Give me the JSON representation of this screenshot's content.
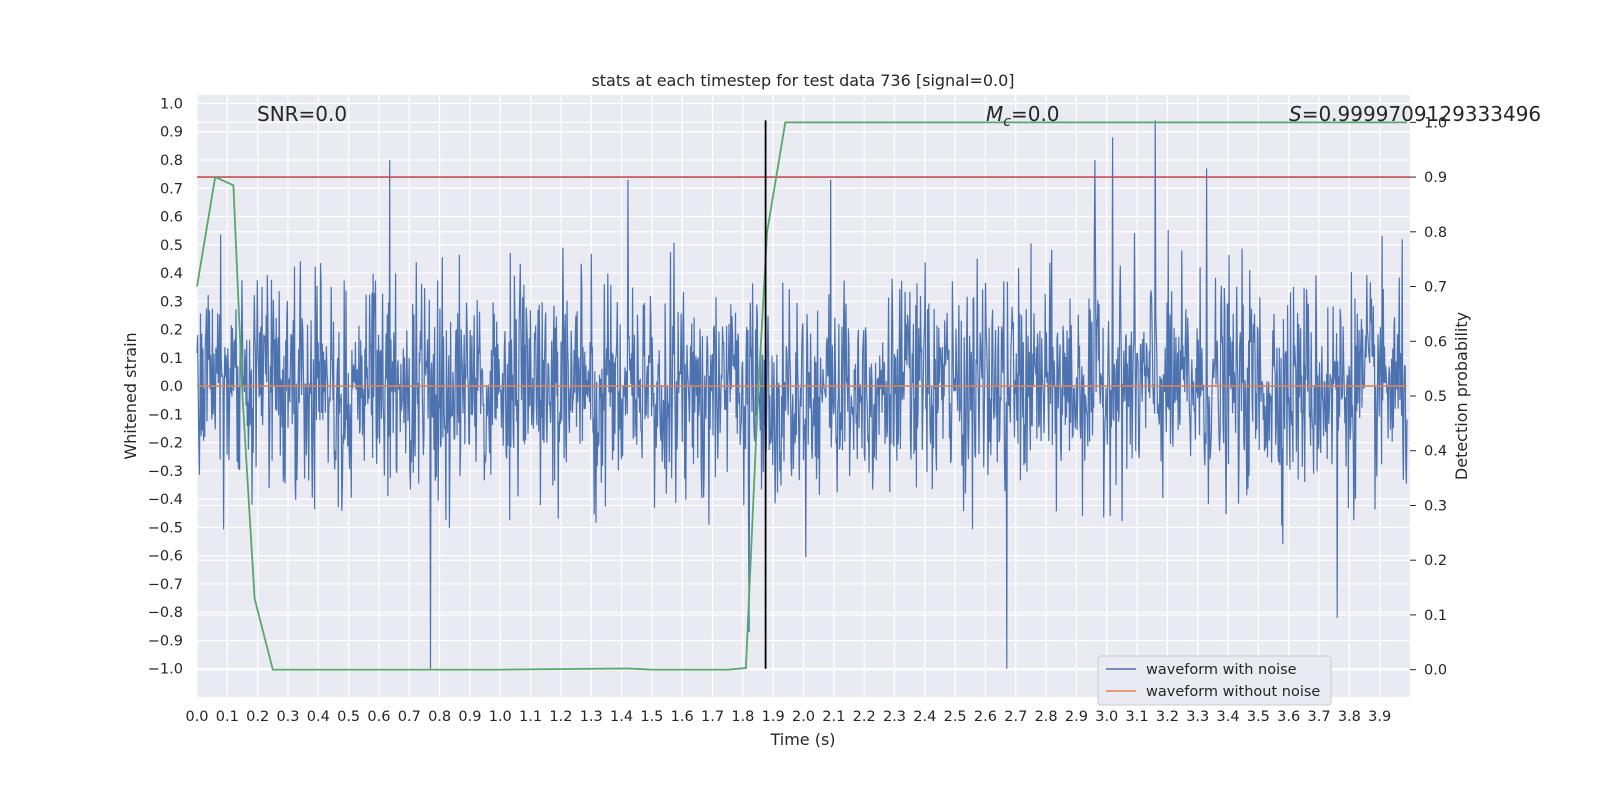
{
  "chart_data": {
    "type": "line",
    "title": "stats at each timestep for test data 736 [signal=0.0]",
    "xlabel": "Time (s)",
    "ylabel": "Whitened strain",
    "y2label": "Detection probability",
    "xlim": [
      0.0,
      4.0
    ],
    "ylim": [
      -1.1,
      1.03
    ],
    "y2lim": [
      -0.05,
      1.05
    ],
    "xticks": [
      "0.0",
      "0.1",
      "0.2",
      "0.3",
      "0.4",
      "0.5",
      "0.6",
      "0.7",
      "0.8",
      "0.9",
      "1.0",
      "1.1",
      "1.2",
      "1.3",
      "1.4",
      "1.5",
      "1.6",
      "1.7",
      "1.8",
      "1.9",
      "2.0",
      "2.1",
      "2.2",
      "2.3",
      "2.4",
      "2.5",
      "2.6",
      "2.7",
      "2.8",
      "2.9",
      "3.0",
      "3.1",
      "3.2",
      "3.3",
      "3.4",
      "3.5",
      "3.6",
      "3.7",
      "3.8",
      "3.9"
    ],
    "yticks": [
      "1.0",
      "0.9",
      "0.8",
      "0.7",
      "0.6",
      "0.5",
      "0.4",
      "0.3",
      "0.2",
      "0.1",
      "0.0",
      "−0.1",
      "−0.2",
      "−0.3",
      "−0.4",
      "−0.5",
      "−0.6",
      "−0.7",
      "−0.8",
      "−0.9",
      "−1.0"
    ],
    "y2ticks": [
      "1.0",
      "0.9",
      "0.8",
      "0.7",
      "0.6",
      "0.5",
      "0.4",
      "0.3",
      "0.2",
      "0.1",
      "0.0"
    ],
    "annotations": {
      "snr": "SNR=0.0",
      "mc_symbol": "M",
      "mc_sub": "c",
      "mc_value": "=0.0",
      "s_symbol": "S",
      "s_value": "=0.9999709129333496"
    },
    "threshold": {
      "axis": "right",
      "value": 0.9,
      "color": "#c44e52"
    },
    "marker_line": {
      "x": 1.875,
      "ymin": -1.0,
      "ymax": 0.94,
      "color": "#000000"
    },
    "legend": {
      "placement": "bottom-right"
    },
    "series": [
      {
        "name": "waveform with noise",
        "axis": "left",
        "color": "#4c72b0",
        "kind": "noise",
        "samples": 2048,
        "typical_amplitude": 0.3,
        "notable_peaks": [
          {
            "x": 0.635,
            "y": 0.8
          },
          {
            "x": 0.77,
            "y": -1.0
          },
          {
            "x": 1.42,
            "y": 0.73
          },
          {
            "x": 1.82,
            "y": -0.87
          },
          {
            "x": 2.09,
            "y": 0.73
          },
          {
            "x": 2.67,
            "y": -1.0
          },
          {
            "x": 2.96,
            "y": 0.8
          },
          {
            "x": 3.02,
            "y": 0.88
          },
          {
            "x": 3.16,
            "y": 0.94
          },
          {
            "x": 3.33,
            "y": 0.77
          },
          {
            "x": 3.76,
            "y": -0.82
          }
        ]
      },
      {
        "name": "waveform without noise",
        "axis": "left",
        "color": "#dd8452",
        "x": [
          0.0,
          3.99
        ],
        "y": [
          0.0,
          0.0
        ]
      },
      {
        "name": "detection probability",
        "axis": "right",
        "color": "#55a868",
        "in_legend": false,
        "x": [
          0.0,
          0.06,
          0.12,
          0.15,
          0.19,
          0.25,
          0.5,
          1.0,
          1.42,
          1.5,
          1.75,
          1.81,
          1.85,
          1.88,
          1.94,
          2.5,
          3.0,
          3.5,
          3.99
        ],
        "y": [
          0.7,
          0.9,
          0.885,
          0.5,
          0.13,
          0.0,
          0.0,
          0.0,
          0.002,
          0.0,
          0.0,
          0.003,
          0.5,
          0.8,
          1.0,
          1.0,
          1.0,
          1.0,
          1.0
        ]
      }
    ]
  }
}
